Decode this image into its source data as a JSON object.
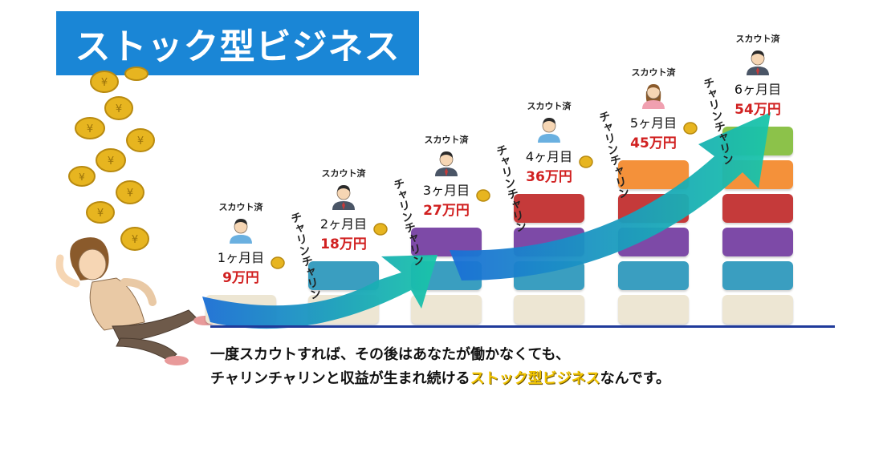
{
  "title": "ストック型ビジネス",
  "steps": [
    {
      "scout": "スカウト済",
      "month": "1ヶ月目",
      "amount": "9万円",
      "chime": "チャリンチャリン",
      "person": "woman-short-hair",
      "blocks": 1
    },
    {
      "scout": "スカウト済",
      "month": "2ヶ月目",
      "amount": "18万円",
      "chime": "チャリンチャリン",
      "person": "man-suit",
      "blocks": 2
    },
    {
      "scout": "スカウト済",
      "month": "3ヶ月目",
      "amount": "27万円",
      "chime": "チャリンチャリン",
      "person": "man-suit",
      "blocks": 3
    },
    {
      "scout": "スカウト済",
      "month": "4ヶ月目",
      "amount": "36万円",
      "chime": "チャリンチャリン",
      "person": "woman-short-hair",
      "blocks": 4
    },
    {
      "scout": "スカウト済",
      "month": "5ヶ月目",
      "amount": "45万円",
      "chime": "チャリンチャリン",
      "person": "woman-long-hair",
      "blocks": 5
    },
    {
      "scout": "スカウト済",
      "month": "6ヶ月目",
      "amount": "54万円",
      "chime": "",
      "person": "man-suit",
      "blocks": 6
    }
  ],
  "block_colors": [
    "#ede6d3",
    "#3a9ec0",
    "#7d4aa7",
    "#c53a3a",
    "#f4913a",
    "#8cc24a"
  ],
  "caption": {
    "line1": "一度スカウトすれば、その後はあなたが働かなくても、",
    "line2_pre": "チャリンチャリンと収益が生まれ続ける",
    "line2_highlight": "ストック型ビジネス",
    "line2_post": "なんです。"
  },
  "colors": {
    "banner": "#1a86d6",
    "amount": "#d12020",
    "arrow_start": "#1b6fd6",
    "arrow_end": "#19c5a8",
    "coin": "#e7b520",
    "highlight": "#f1c400"
  }
}
